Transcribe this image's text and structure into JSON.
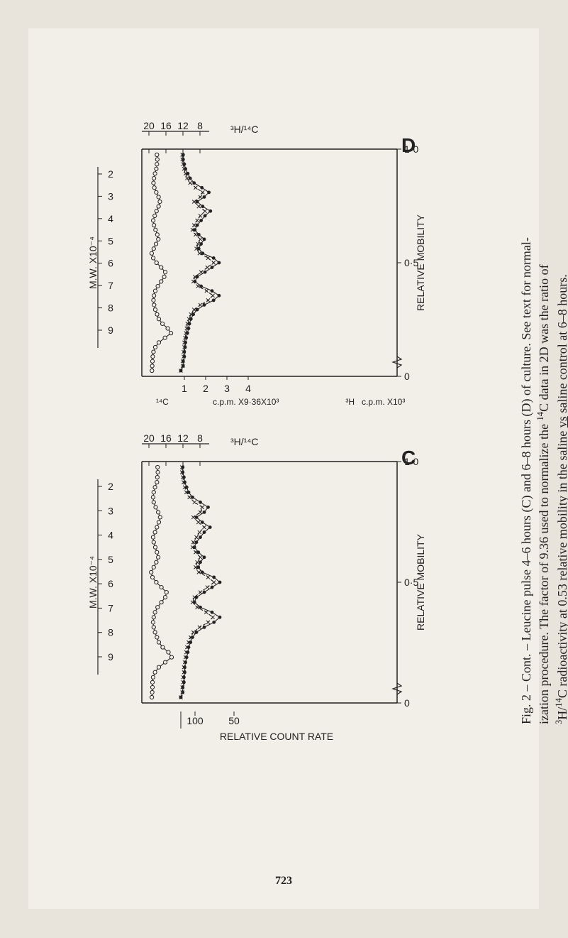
{
  "page_number": "723",
  "caption": {
    "prefix": "Fig. 2 – Cont. – Leucine pulse 4–6 hours (C) and 6–8 hours (D) of culture. See text for normal-",
    "line2_a": "ization procedure. The factor of 9.36 used to normalize the ",
    "line2_b": "C data in 2D was the ratio of",
    "line3_a": "H/",
    "line3_b": "C radioactivity at 0.53 relative mobility in the saline ",
    "vs": "vs",
    "line3_c": " saline control at 6–8 hours.",
    "sup3": "3",
    "sup14": "14"
  },
  "panel_c": {
    "label": "C",
    "top_ticks": [
      "20",
      "16",
      "12",
      "8"
    ],
    "top_label": "³H/¹⁴C",
    "left_label": "M.W. X10⁻⁴",
    "left_ticks": [
      "2",
      "3",
      "4",
      "5",
      "6",
      "7",
      "8",
      "9"
    ],
    "bottom_ticks_inner": [
      "100",
      "50"
    ],
    "bottom_label": "RELATIVE COUNT RATE",
    "right_ticks": [
      "0",
      "0·5",
      "1·0"
    ],
    "right_label": "RELATIVE MOBILITY",
    "series": {
      "circles": [
        90,
        92,
        88,
        85,
        70,
        60,
        55,
        60,
        75,
        95,
        110,
        100,
        85,
        70,
        55,
        60,
        72,
        85,
        95,
        80,
        60,
        40,
        50,
        80,
        120,
        160,
        150,
        120,
        90,
        70,
        60,
        55,
        60,
        70,
        85,
        100,
        130,
        175,
        200,
        150,
        100,
        70,
        55,
        50,
        50,
        48,
        45
      ],
      "dots": [
        5,
        5,
        8,
        10,
        15,
        20,
        30,
        50,
        70,
        60,
        40,
        55,
        75,
        60,
        50,
        40,
        35,
        45,
        60,
        50,
        45,
        55,
        85,
        100,
        80,
        60,
        40,
        35,
        50,
        80,
        100,
        85,
        60,
        40,
        30,
        25,
        20,
        18,
        15,
        12,
        10,
        10,
        8,
        8,
        5,
        5,
        0
      ],
      "crosses": [
        3,
        3,
        5,
        7,
        10,
        14,
        22,
        35,
        55,
        50,
        32,
        45,
        60,
        48,
        40,
        32,
        30,
        38,
        50,
        42,
        38,
        46,
        70,
        85,
        68,
        50,
        35,
        30,
        42,
        65,
        82,
        70,
        48,
        32,
        25,
        20,
        16,
        14,
        12,
        10,
        8,
        8,
        6,
        6,
        4,
        4,
        0
      ]
    },
    "chart_colors": {
      "line": "#222222",
      "bg": "#f2efe8"
    }
  },
  "panel_d": {
    "label": "D",
    "top_ticks": [
      "20",
      "16",
      "12",
      "8"
    ],
    "top_label": "³H/¹⁴C",
    "left_label": "M.W. X10⁻⁴",
    "left_ticks": [
      "2",
      "3",
      "4",
      "5",
      "6",
      "7",
      "8",
      "9"
    ],
    "h3": "³H",
    "c14": "¹⁴C",
    "inner_left_ticks": [
      "1",
      "2",
      "3",
      "4"
    ],
    "inner_left_label_a": "c.p.m. X9·36X10³",
    "inner_left_label_b": "c.p.m. X10³",
    "right_ticks": [
      "0",
      "0·5",
      "1·0"
    ],
    "right_label": "RELATIVE MOBILITY",
    "series": {
      "circles": [
        85,
        88,
        85,
        80,
        70,
        62,
        58,
        65,
        80,
        98,
        108,
        98,
        82,
        68,
        56,
        62,
        74,
        88,
        96,
        78,
        60,
        44,
        56,
        82,
        118,
        150,
        142,
        118,
        92,
        72,
        62,
        58,
        63,
        72,
        86,
        100,
        128,
        170,
        195,
        148,
        100,
        72,
        58,
        52,
        50,
        48,
        46
      ],
      "dots": [
        6,
        6,
        9,
        12,
        18,
        24,
        34,
        54,
        72,
        60,
        42,
        56,
        76,
        62,
        52,
        42,
        36,
        46,
        60,
        52,
        46,
        56,
        84,
        98,
        80,
        62,
        42,
        36,
        52,
        80,
        98,
        84,
        60,
        42,
        32,
        26,
        22,
        20,
        17,
        14,
        12,
        11,
        9,
        9,
        6,
        6,
        0
      ],
      "crosses": [
        4,
        4,
        6,
        8,
        12,
        16,
        24,
        38,
        56,
        50,
        34,
        46,
        62,
        50,
        42,
        34,
        30,
        38,
        50,
        44,
        40,
        48,
        70,
        84,
        68,
        52,
        36,
        32,
        44,
        66,
        82,
        70,
        50,
        34,
        26,
        21,
        17,
        15,
        13,
        11,
        9,
        9,
        7,
        7,
        5,
        5,
        0
      ]
    },
    "chart_colors": {
      "line": "#222222",
      "bg": "#f2efe8"
    }
  },
  "style": {
    "axis_fontsize": 14,
    "tick_fontsize": 14,
    "panel_label_fontsize": 28,
    "text_color": "#222222",
    "background": "#f2efe8"
  }
}
